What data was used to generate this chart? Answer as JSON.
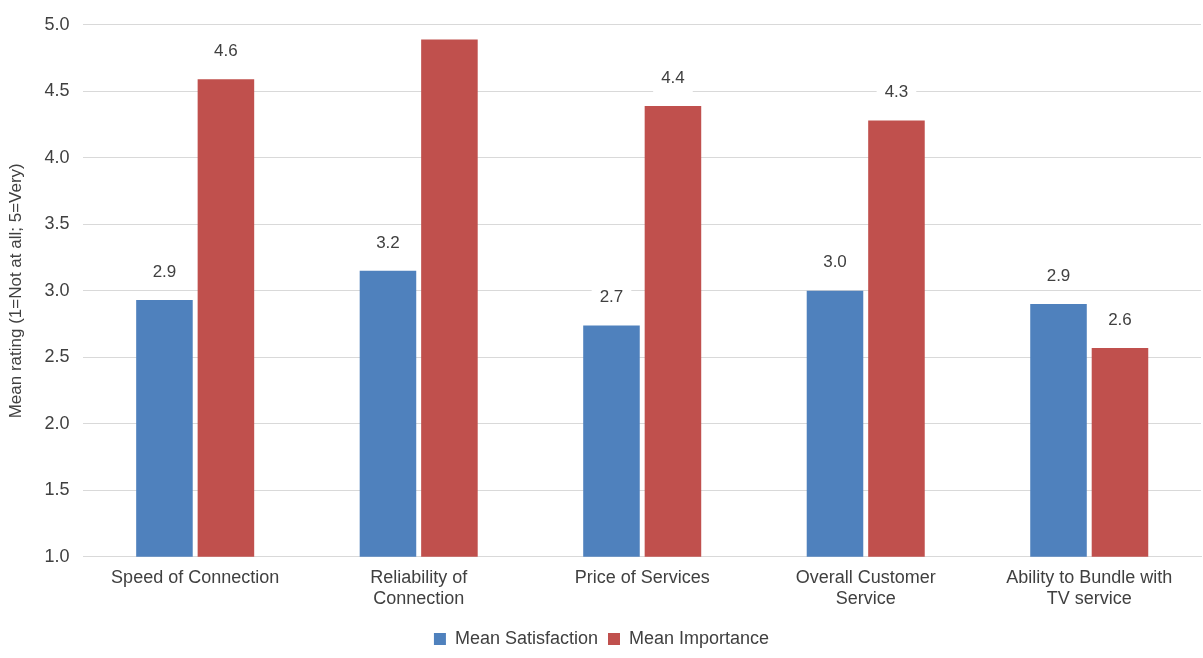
{
  "chart_data": {
    "type": "bar",
    "ylabel": "Mean rating (1=Not at all; 5=Very)",
    "categories": [
      "Speed of Connection",
      "Reliability of Connection",
      "Price of Services",
      "Overall Customer Service",
      "Ability to Bundle with TV service"
    ],
    "series": [
      {
        "name": "Mean Satisfaction",
        "color": "#4f81bd",
        "values": [
          2.93,
          3.15,
          2.74,
          3.0,
          2.9
        ],
        "value_labels": [
          "2.9",
          "3.2",
          "2.7",
          "3.0",
          "2.9"
        ]
      },
      {
        "name": "Mean Importance",
        "color": "#c0504d",
        "values": [
          4.59,
          4.89,
          4.39,
          4.28,
          2.57
        ],
        "value_labels": [
          "4.6",
          null,
          "4.4",
          "4.3",
          "2.6"
        ]
      }
    ],
    "ylim": [
      1,
      5
    ],
    "yticks": [
      {
        "value": 1,
        "label": "1.0"
      },
      1.5,
      {
        "value": 2,
        "label": "2.0"
      },
      2.5,
      {
        "value": 3,
        "label": "3.0"
      },
      3.5,
      {
        "value": 4,
        "label": "4.0"
      },
      4.5,
      {
        "value": 5,
        "label": "5.0"
      }
    ],
    "grid": "y",
    "legend": "bottom"
  }
}
